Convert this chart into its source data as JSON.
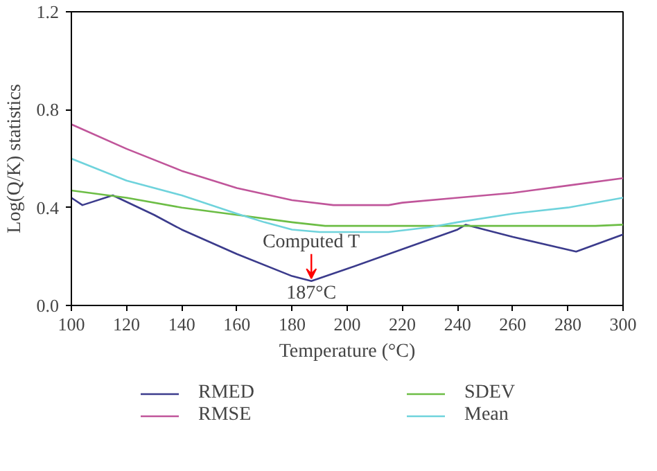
{
  "chart_data": {
    "type": "line",
    "xlabel": "Temperature (°C)",
    "ylabel": "Log(Q/K) statistics",
    "x": [
      100,
      104,
      115,
      130,
      140,
      160,
      180,
      187,
      200,
      220,
      240,
      243,
      260,
      283,
      300
    ],
    "series": [
      {
        "name": "RMED",
        "color": "#3b3b8c",
        "values": [
          0.44,
          0.41,
          0.45,
          0.37,
          0.31,
          0.21,
          0.12,
          0.1,
          0.15,
          0.23,
          0.31,
          0.33,
          0.28,
          0.22,
          0.29
        ]
      },
      {
        "name": "RMSE",
        "color": "#c0559a",
        "x": [
          100,
          120,
          140,
          160,
          180,
          195,
          215,
          220,
          240,
          260,
          280,
          300
        ],
        "values": [
          0.74,
          0.64,
          0.55,
          0.48,
          0.43,
          0.41,
          0.41,
          0.42,
          0.44,
          0.46,
          0.49,
          0.52
        ]
      },
      {
        "name": "SDEV",
        "color": "#6cbd45",
        "x": [
          100,
          120,
          140,
          160,
          180,
          192,
          290,
          300
        ],
        "values": [
          0.47,
          0.44,
          0.4,
          0.37,
          0.34,
          0.325,
          0.325,
          0.33
        ]
      },
      {
        "name": "Mean",
        "color": "#6fd3dc",
        "x": [
          100,
          120,
          140,
          160,
          170,
          180,
          190,
          215,
          230,
          240,
          260,
          280,
          300
        ],
        "values": [
          0.6,
          0.51,
          0.45,
          0.375,
          0.34,
          0.31,
          0.3,
          0.3,
          0.32,
          0.34,
          0.375,
          0.4,
          0.44
        ]
      }
    ],
    "xlim": [
      100,
      300
    ],
    "ylim": [
      0,
      1.2
    ],
    "xticks": [
      100,
      120,
      140,
      160,
      180,
      200,
      220,
      240,
      260,
      280,
      300
    ],
    "yticks": [
      {
        "value": 0,
        "label": "0.0"
      },
      {
        "value": 0.4,
        "label": "0.4"
      },
      {
        "value": 0.8,
        "label": "0.8"
      },
      {
        "value": 1.2,
        "label": "1.2"
      }
    ],
    "annotations": [
      {
        "text": "Computed T",
        "x": 187,
        "y": 0.1
      },
      {
        "text": "187°C",
        "x": 187,
        "y": 0.1
      }
    ],
    "legend": "bottom",
    "grid": false,
    "line_style": "solid",
    "marker": "none"
  }
}
